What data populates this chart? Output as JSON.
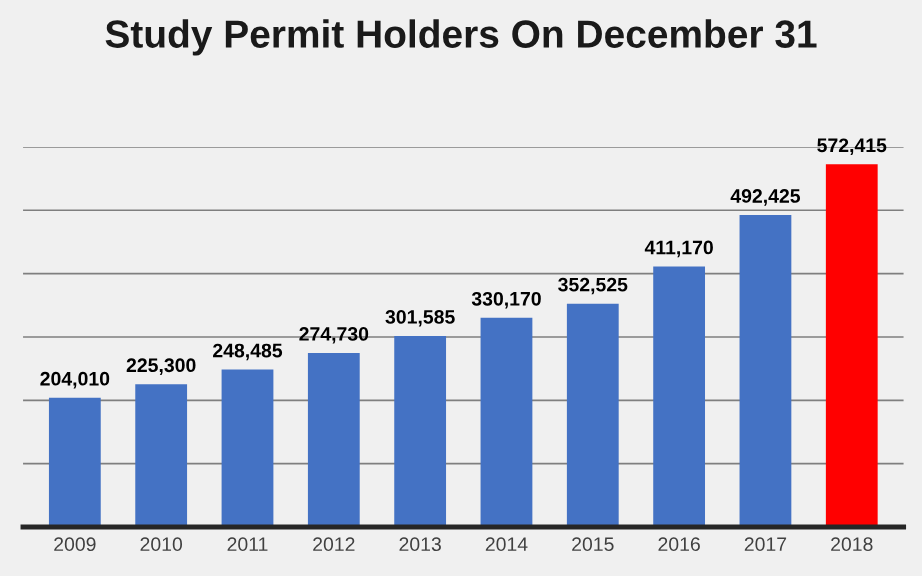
{
  "chart_data": {
    "type": "bar",
    "title": "Study Permit Holders On December 31",
    "categories": [
      "2009",
      "2010",
      "2011",
      "2012",
      "2013",
      "2014",
      "2015",
      "2016",
      "2017",
      "2018"
    ],
    "values": [
      204010,
      225300,
      248485,
      274730,
      301585,
      330170,
      352525,
      411170,
      492425,
      572415
    ],
    "colors": [
      "#4472c4",
      "#4472c4",
      "#4472c4",
      "#4472c4",
      "#4472c4",
      "#4472c4",
      "#4472c4",
      "#4472c4",
      "#4472c4",
      "#ff0000"
    ],
    "value_labels": [
      "204,010",
      "225,300",
      "248,485",
      "274,730",
      "301,585",
      "330,170",
      "352,525",
      "411,170",
      "492,425",
      "572,415"
    ],
    "ylim": [
      0,
      600000
    ],
    "yticks": [
      {
        "value": 0,
        "label": null
      },
      {
        "value": 100000,
        "label": null
      },
      {
        "value": 200000,
        "label": null
      },
      {
        "value": 300000,
        "label": null
      },
      {
        "value": 400000,
        "label": null
      },
      {
        "value": 500000,
        "label": null
      },
      {
        "value": 600000,
        "label": null
      }
    ],
    "grid": "y",
    "tick_labels": "x",
    "legend": false
  }
}
